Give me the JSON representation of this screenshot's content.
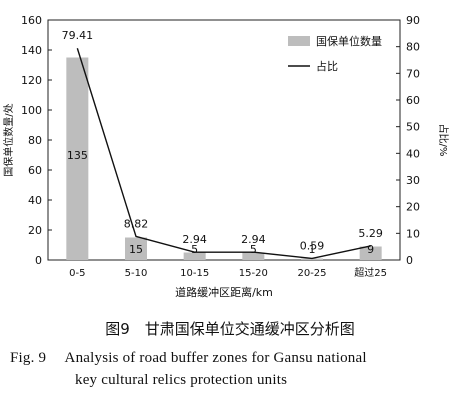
{
  "chart_data": {
    "type": "bar",
    "categories": [
      "0-5",
      "5-10",
      "10-15",
      "15-20",
      "20-25",
      "超过25"
    ],
    "series": [
      {
        "name": "国保单位数量",
        "type": "bar",
        "axis": "left",
        "values": [
          135,
          15,
          5,
          5,
          1,
          9
        ],
        "color": "#bdbdbd"
      },
      {
        "name": "占比",
        "type": "line",
        "axis": "right",
        "values": [
          79.41,
          8.82,
          2.94,
          2.94,
          0.59,
          5.29
        ],
        "color": "#111111"
      }
    ],
    "bar_labels": [
      "135",
      "15",
      "5",
      "5",
      "1",
      "9"
    ],
    "line_labels": [
      "79.41",
      "8.82",
      "2.94",
      "2.94",
      "0.59",
      "5.29"
    ],
    "xlabel": "道路缓冲区距离/km",
    "ylabel": "国保单位数量/处",
    "y2label": "占比/%",
    "ylim": [
      0,
      160
    ],
    "y2lim": [
      0,
      90
    ],
    "yticks": [
      0,
      20,
      40,
      60,
      80,
      100,
      120,
      140,
      160
    ],
    "y2ticks": [
      0,
      10,
      20,
      30,
      40,
      50,
      60,
      70,
      80,
      90
    ],
    "grid": false,
    "legend_position": "top-right"
  },
  "caption": {
    "cn": "图9　甘肃国保单位交通缓冲区分析图",
    "en_line1": "Fig. 9　 Analysis of road buffer zones for Gansu national",
    "en_line2": "key cultural relics protection units"
  }
}
